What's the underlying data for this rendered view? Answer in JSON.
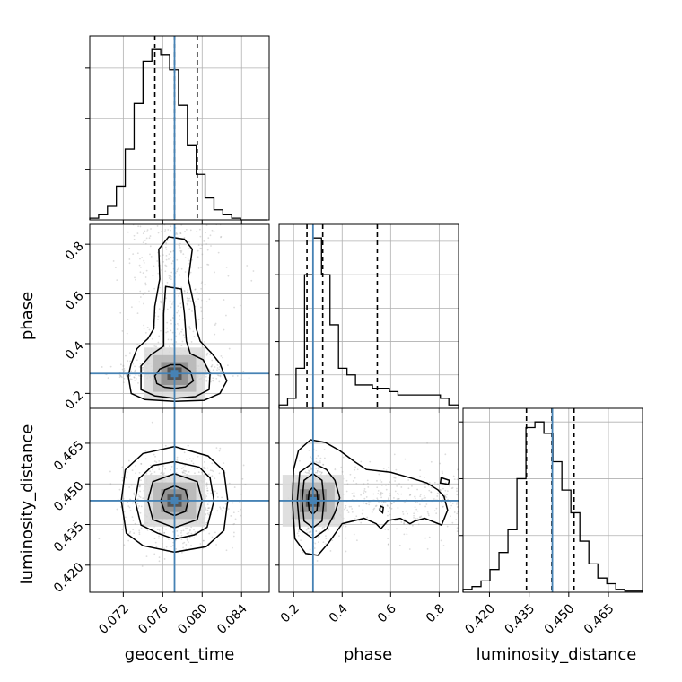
{
  "chart_data": {
    "type": "corner",
    "parameters": [
      "geocent_time",
      "phase",
      "luminosity_distance"
    ],
    "truths": {
      "geocent_time": 0.0772,
      "phase": 0.28,
      "luminosity_distance": 0.4438
    },
    "colors": {
      "truth_line": "#4682b4",
      "histogram": "#000000",
      "quantile_line": "#000000",
      "grid": "#b0b0b0",
      "samples": "#9a9a9a"
    },
    "grid": true,
    "marginals": [
      {
        "parameter": "geocent_time",
        "range": [
          0.0686,
          0.0868
        ],
        "bins": [
          0.0686,
          0.0695,
          0.0704,
          0.0713,
          0.0722,
          0.0731,
          0.074,
          0.0749,
          0.0758,
          0.0767,
          0.0776,
          0.0785,
          0.0794,
          0.0803,
          0.0812,
          0.0821,
          0.083,
          0.0839,
          0.0848,
          0.0857,
          0.0866
        ],
        "counts": [
          1,
          3,
          8,
          20,
          42,
          69,
          94,
          101,
          98,
          89,
          68,
          44,
          27,
          13,
          6,
          3,
          1,
          0,
          0,
          0
        ],
        "quantiles": [
          0.0752,
          0.0772,
          0.0795
        ],
        "yticks": [
          30,
          60,
          90
        ]
      },
      {
        "parameter": "phase",
        "range": [
          0.14,
          0.88
        ],
        "bins": [
          0.14,
          0.175,
          0.21,
          0.245,
          0.28,
          0.315,
          0.35,
          0.385,
          0.42,
          0.455,
          0.49,
          0.525,
          0.56,
          0.595,
          0.63,
          0.665,
          0.7,
          0.735,
          0.77,
          0.805,
          0.84,
          0.88
        ],
        "counts": [
          1,
          3,
          12,
          40,
          51,
          40,
          25,
          12,
          10,
          7,
          7,
          6,
          6,
          5,
          4,
          4,
          4,
          4,
          4,
          3,
          1
        ],
        "quantiles": [
          0.255,
          0.32,
          0.545
        ],
        "yticks": [
          10,
          20,
          30,
          40,
          50
        ]
      },
      {
        "parameter": "luminosity_distance",
        "range": [
          0.41,
          0.4779
        ],
        "bins": [
          0.41,
          0.4134,
          0.4168,
          0.4202,
          0.4236,
          0.427,
          0.4304,
          0.4338,
          0.4372,
          0.4406,
          0.444,
          0.4474,
          0.4508,
          0.4542,
          0.4576,
          0.461,
          0.4644,
          0.4678,
          0.4712,
          0.4746,
          0.4779
        ],
        "counts": [
          0.5,
          1,
          2,
          4,
          7,
          11,
          20,
          29,
          30,
          28,
          23,
          18,
          14,
          9,
          5,
          2.5,
          1.5,
          0.5,
          0.2,
          0.2
        ],
        "quantiles": [
          0.434,
          0.4436,
          0.452
        ],
        "yticks": [
          10,
          20,
          30
        ]
      }
    ],
    "joints": [
      {
        "x": "geocent_time",
        "y": "phase",
        "xrange": [
          0.0686,
          0.0868
        ],
        "yrange": [
          0.14,
          0.88
        ],
        "mean": [
          0.0772,
          0.28
        ],
        "spread": [
          0.0018,
          0.03
        ],
        "contours": [
          [
            [
              0.0754,
              0.24
            ],
            [
              0.0762,
              0.225
            ],
            [
              0.0772,
              0.22
            ],
            [
              0.0783,
              0.226
            ],
            [
              0.0791,
              0.25
            ],
            [
              0.0788,
              0.29
            ],
            [
              0.0778,
              0.315
            ],
            [
              0.0768,
              0.315
            ],
            [
              0.0757,
              0.298
            ],
            [
              0.0752,
              0.27
            ]
          ],
          [
            [
              0.0738,
              0.215
            ],
            [
              0.0752,
              0.19
            ],
            [
              0.0772,
              0.18
            ],
            [
              0.0793,
              0.187
            ],
            [
              0.0807,
              0.215
            ],
            [
              0.0808,
              0.28
            ],
            [
              0.0801,
              0.335
            ],
            [
              0.0788,
              0.36
            ],
            [
              0.0784,
              0.41
            ],
            [
              0.0782,
              0.52
            ],
            [
              0.0779,
              0.62
            ],
            [
              0.0763,
              0.63
            ],
            [
              0.0761,
              0.52
            ],
            [
              0.0761,
              0.39
            ],
            [
              0.0748,
              0.355
            ],
            [
              0.0738,
              0.31
            ]
          ],
          [
            [
              0.0728,
              0.2
            ],
            [
              0.0742,
              0.175
            ],
            [
              0.0772,
              0.168
            ],
            [
              0.0802,
              0.172
            ],
            [
              0.0818,
              0.2
            ],
            [
              0.0825,
              0.25
            ],
            [
              0.0818,
              0.32
            ],
            [
              0.081,
              0.36
            ],
            [
              0.0798,
              0.41
            ],
            [
              0.0794,
              0.46
            ],
            [
              0.0792,
              0.55
            ],
            [
              0.0786,
              0.66
            ],
            [
              0.079,
              0.78
            ],
            [
              0.0782,
              0.82
            ],
            [
              0.0766,
              0.83
            ],
            [
              0.0756,
              0.78
            ],
            [
              0.0757,
              0.66
            ],
            [
              0.0752,
              0.55
            ],
            [
              0.0751,
              0.46
            ],
            [
              0.0745,
              0.42
            ],
            [
              0.0734,
              0.38
            ],
            [
              0.0728,
              0.32
            ],
            [
              0.0725,
              0.27
            ]
          ]
        ]
      },
      {
        "x": "geocent_time",
        "y": "luminosity_distance",
        "xrange": [
          0.0686,
          0.0868
        ],
        "yrange": [
          0.41,
          0.4779
        ],
        "mean": [
          0.0772,
          0.4438
        ],
        "spread": [
          0.0018,
          0.0055
        ],
        "contours": [
          [
            [
              0.0758,
              0.4438
            ],
            [
              0.0762,
              0.4398
            ],
            [
              0.0772,
              0.4383
            ],
            [
              0.0783,
              0.4398
            ],
            [
              0.0786,
              0.4438
            ],
            [
              0.0783,
              0.4478
            ],
            [
              0.0772,
              0.4492
            ],
            [
              0.0762,
              0.4478
            ]
          ],
          [
            [
              0.0745,
              0.4438
            ],
            [
              0.075,
              0.4368
            ],
            [
              0.0772,
              0.4338
            ],
            [
              0.0795,
              0.4368
            ],
            [
              0.08,
              0.4438
            ],
            [
              0.0795,
              0.4508
            ],
            [
              0.0772,
              0.4538
            ],
            [
              0.075,
              0.4508
            ]
          ],
          [
            [
              0.0732,
              0.4438
            ],
            [
              0.0738,
              0.4348
            ],
            [
              0.0755,
              0.4318
            ],
            [
              0.0772,
              0.4296
            ],
            [
              0.0792,
              0.4312
            ],
            [
              0.0805,
              0.434
            ],
            [
              0.0812,
              0.4438
            ],
            [
              0.0808,
              0.4522
            ],
            [
              0.0797,
              0.4562
            ],
            [
              0.0772,
              0.4582
            ],
            [
              0.075,
              0.4568
            ],
            [
              0.0736,
              0.452
            ]
          ],
          [
            [
              0.0718,
              0.4438
            ],
            [
              0.0723,
              0.4318
            ],
            [
              0.074,
              0.4272
            ],
            [
              0.0772,
              0.4248
            ],
            [
              0.0804,
              0.4268
            ],
            [
              0.0822,
              0.4328
            ],
            [
              0.0826,
              0.4438
            ],
            [
              0.0822,
              0.4548
            ],
            [
              0.0806,
              0.4603
            ],
            [
              0.0772,
              0.4638
            ],
            [
              0.074,
              0.4612
            ],
            [
              0.0722,
              0.4552
            ]
          ]
        ]
      },
      {
        "x": "phase",
        "y": "luminosity_distance",
        "xrange": [
          0.14,
          0.88
        ],
        "yrange": [
          0.41,
          0.4779
        ],
        "mean": [
          0.28,
          0.4438
        ],
        "spread": [
          0.03,
          0.0055
        ],
        "contours": [
          [
            [
              0.26,
              0.4438
            ],
            [
              0.264,
              0.4403
            ],
            [
              0.28,
              0.4388
            ],
            [
              0.296,
              0.4403
            ],
            [
              0.3,
              0.4438
            ],
            [
              0.296,
              0.4473
            ],
            [
              0.28,
              0.4488
            ],
            [
              0.264,
              0.4473
            ]
          ],
          [
            [
              0.235,
              0.4438
            ],
            [
              0.243,
              0.4363
            ],
            [
              0.28,
              0.4338
            ],
            [
              0.317,
              0.4363
            ],
            [
              0.325,
              0.4438
            ],
            [
              0.317,
              0.4513
            ],
            [
              0.28,
              0.4538
            ],
            [
              0.243,
              0.4513
            ]
          ],
          [
            [
              0.215,
              0.4438
            ],
            [
              0.225,
              0.4333
            ],
            [
              0.28,
              0.4298
            ],
            [
              0.335,
              0.4333
            ],
            [
              0.37,
              0.4393
            ],
            [
              0.39,
              0.4448
            ],
            [
              0.37,
              0.4513
            ],
            [
              0.335,
              0.4553
            ],
            [
              0.28,
              0.4578
            ],
            [
              0.225,
              0.4543
            ]
          ],
          [
            [
              0.195,
              0.4438
            ],
            [
              0.205,
              0.4298
            ],
            [
              0.25,
              0.4243
            ],
            [
              0.3,
              0.4236
            ],
            [
              0.345,
              0.4283
            ],
            [
              0.4,
              0.4353
            ],
            [
              0.49,
              0.4373
            ],
            [
              0.54,
              0.4353
            ],
            [
              0.56,
              0.4335
            ],
            [
              0.59,
              0.4365
            ],
            [
              0.64,
              0.4373
            ],
            [
              0.68,
              0.4353
            ],
            [
              0.7,
              0.4363
            ],
            [
              0.74,
              0.4373
            ],
            [
              0.81,
              0.4348
            ],
            [
              0.835,
              0.4403
            ],
            [
              0.82,
              0.4453
            ],
            [
              0.795,
              0.4478
            ],
            [
              0.75,
              0.4503
            ],
            [
              0.68,
              0.4523
            ],
            [
              0.6,
              0.4543
            ],
            [
              0.5,
              0.4553
            ],
            [
              0.45,
              0.4583
            ],
            [
              0.39,
              0.4623
            ],
            [
              0.33,
              0.4653
            ],
            [
              0.27,
              0.4663
            ],
            [
              0.22,
              0.4623
            ],
            [
              0.2,
              0.4553
            ]
          ],
          [
            [
              0.805,
              0.4503
            ],
            [
              0.838,
              0.4498
            ],
            [
              0.842,
              0.4513
            ],
            [
              0.808,
              0.4523
            ]
          ],
          [
            [
              0.555,
              0.4403
            ],
            [
              0.567,
              0.4393
            ],
            [
              0.57,
              0.4413
            ],
            [
              0.558,
              0.4418
            ]
          ]
        ]
      }
    ],
    "tick_labels": {
      "geocent_time": [
        "0.072",
        "0.076",
        "0.080",
        "0.084"
      ],
      "phase": [
        "0.2",
        "0.4",
        "0.6",
        "0.8"
      ],
      "luminosity_distance": [
        "0.420",
        "0.435",
        "0.450",
        "0.465"
      ]
    },
    "axis_labels": {
      "x": [
        "geocent_time",
        "phase",
        "luminosity_distance"
      ],
      "y": [
        "phase",
        "luminosity_distance"
      ]
    }
  }
}
